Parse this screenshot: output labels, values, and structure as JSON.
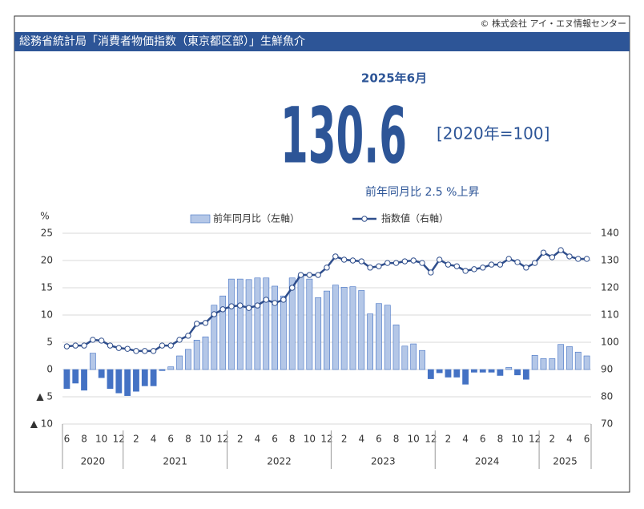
{
  "chart_data": {
    "type": "combo",
    "copyright": "© 株式会社 アイ・エヌ情報センター",
    "title": "総務省統計局「消費者物価指数（東京都区部）」生鮮魚介",
    "headline": {
      "period": "2025年6月",
      "value": 130.6,
      "base": "[2020年=100]",
      "change": "前年同月比 2.5 %上昇"
    },
    "y_unit": "%",
    "categories": [
      "6",
      null,
      "8",
      null,
      "10",
      null,
      "12",
      null,
      "2",
      null,
      "4",
      null,
      "6",
      null,
      "8",
      null,
      "10",
      null,
      "12",
      null,
      "2",
      null,
      "4",
      null,
      "6",
      null,
      "8",
      null,
      "10",
      null,
      "12",
      null,
      "2",
      null,
      "4",
      null,
      "6",
      null,
      "8",
      null,
      "10",
      null,
      "12",
      null,
      "2",
      null,
      "4",
      null,
      "6",
      null,
      "8",
      null,
      "10",
      null,
      "12",
      null,
      "2",
      null,
      "4",
      null,
      "6"
    ],
    "x_groups": [
      {
        "label": "2020",
        "span": 7
      },
      {
        "label": "2021",
        "span": 12
      },
      {
        "label": "2022",
        "span": 12
      },
      {
        "label": "2023",
        "span": 12
      },
      {
        "label": "2024",
        "span": 12
      },
      {
        "label": "2025",
        "span": 6
      }
    ],
    "series": [
      {
        "name": "前年同月比（左軸）",
        "type": "bar",
        "color": "#b4c7e7",
        "negative_color": "#4472c4",
        "values": [
          -3.5,
          -2.5,
          -3.8,
          3,
          -1.5,
          -3.5,
          -4.3,
          -4.8,
          -4,
          -3,
          -3,
          -0.2,
          0.5,
          2.5,
          3.7,
          5.4,
          6,
          11.8,
          13.5,
          16.6,
          16.6,
          16.5,
          16.8,
          16.8,
          15.3,
          13.5,
          16.8,
          17.2,
          16.6,
          13.2,
          14.4,
          15.5,
          15.1,
          15.2,
          14.5,
          10.2,
          12.1,
          11.8,
          8.2,
          4.3,
          4.7,
          3.5,
          -1.7,
          -0.6,
          -1.4,
          -1.4,
          -2.7,
          -0.5,
          -0.5,
          -0.5,
          -1.1,
          0.4,
          -1,
          -1.8,
          2.6,
          2,
          2,
          4.6,
          4.2,
          3.2,
          2.5
        ]
      },
      {
        "name": "指数値（右軸）",
        "type": "line",
        "axis": "y2",
        "color": "#2f4e8c",
        "values": [
          98.5,
          98.8,
          98.8,
          100.9,
          100.6,
          98.8,
          97.9,
          97.6,
          96.8,
          96.8,
          96.8,
          98.8,
          98.8,
          100.9,
          102.4,
          106.8,
          107.1,
          110.3,
          112.1,
          113.2,
          113.5,
          112.6,
          113.5,
          115.6,
          114.4,
          115.6,
          120,
          124.7,
          124.7,
          124.7,
          127.4,
          131.5,
          130.3,
          130,
          129.7,
          127.4,
          127.9,
          129.1,
          129.1,
          129.7,
          130,
          129.1,
          125.6,
          130.3,
          128.5,
          127.9,
          126.2,
          126.8,
          127.4,
          128.5,
          128.5,
          130.6,
          129.4,
          127.4,
          129.1,
          132.9,
          131.2,
          133.8,
          131.5,
          130.6,
          130.6
        ]
      }
    ],
    "ylim": [
      -10,
      25
    ],
    "yticks": [
      {
        "value": -10,
        "label": "▲ 10"
      },
      {
        "value": -5,
        "label": "▲ 5"
      },
      0,
      5,
      10,
      15,
      20,
      25
    ],
    "y2lim": [
      70,
      140
    ],
    "y2ticks": [
      70,
      80,
      90,
      100,
      110,
      120,
      130,
      140
    ],
    "grid": true
  }
}
